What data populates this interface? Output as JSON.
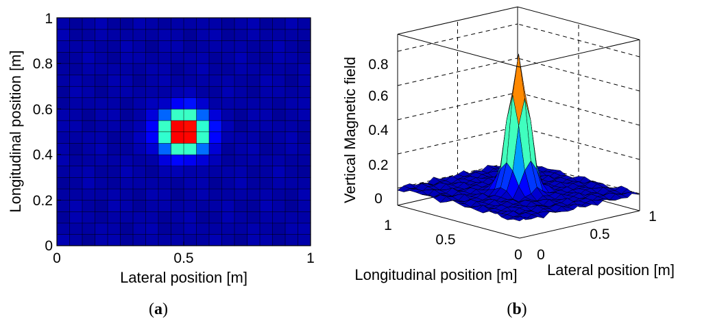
{
  "chart_data": [
    {
      "type": "heatmap",
      "panel_label": "a",
      "xlabel": "Lateral position [m]",
      "ylabel": "Longitudinal position [m]",
      "xlim": [
        0,
        1
      ],
      "ylim": [
        0,
        1
      ],
      "xticks": [
        "0",
        "0.5",
        "1"
      ],
      "yticks": [
        "0",
        "0.2",
        "0.4",
        "0.6",
        "0.8",
        "1"
      ],
      "grid_size": 20,
      "colormap": "jet",
      "clim": [
        0,
        0.8
      ],
      "peak": {
        "x": 0.5,
        "y": 0.5,
        "value": 0.8
      },
      "spread_m": 0.058,
      "background_level": 0.03
    },
    {
      "type": "surface",
      "panel_label": "b",
      "zlabel": "Vertical Magnetic field",
      "xlabel": "Lateral position [m]",
      "ylabel": "Longitudinal position [m]",
      "zlim": [
        -0.1,
        0.9
      ],
      "zticks": [
        "0",
        "0.2",
        "0.4",
        "0.6",
        "0.8"
      ],
      "xticks": [
        "0",
        "0.5",
        "1"
      ],
      "yticks": [
        "0",
        "0.5",
        "1"
      ],
      "grid_size": 20,
      "colormap": "jet",
      "peak": {
        "x": 0.5,
        "y": 0.5,
        "value": 0.8
      }
    }
  ]
}
